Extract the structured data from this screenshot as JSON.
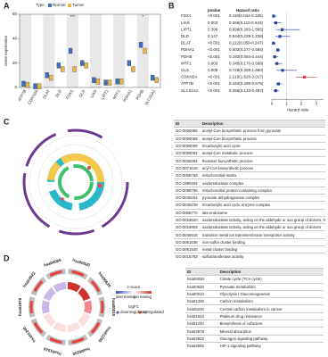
{
  "panel_labels": [
    "A",
    "B",
    "C",
    "D"
  ],
  "chart_data": [
    {
      "type": "box",
      "ylabel": "Gene expression",
      "legend_title": "Type",
      "categories": [
        "ATP7B",
        "CDKN2A",
        "DLAT",
        "DLD",
        "FDX1",
        "GLS",
        "LIAS",
        "LIPT1",
        "MTF1",
        "PDHA1",
        "PDHB",
        "SLC31A1"
      ],
      "series": [
        {
          "name": "Normal",
          "color": "#3d6fc4",
          "values": [
            3,
            1,
            10,
            18,
            30,
            20,
            6,
            4,
            5,
            20,
            35,
            8
          ]
        },
        {
          "name": "Tumor",
          "color": "#e8b64a",
          "values": [
            2,
            1,
            8,
            15,
            15,
            18,
            5,
            4,
            5,
            15,
            30,
            6
          ]
        }
      ],
      "significance": [
        null,
        null,
        null,
        null,
        "***",
        null,
        null,
        null,
        null,
        null,
        "*",
        null
      ],
      "ylim": [
        0,
        60
      ],
      "yticks": [
        0,
        20,
        40,
        60
      ]
    },
    {
      "type": "forest",
      "headers": [
        "pvalue",
        "Hazard ratio"
      ],
      "xlabel": "Hazard ratio",
      "categories": [
        "FDX1",
        "LIAS",
        "LIPT1",
        "DLD",
        "DLAT",
        "PDHA1",
        "PDHB",
        "MTF1",
        "GLS",
        "CDKN2A",
        "ATP7B",
        "SLC31A1"
      ],
      "pvalues": [
        "<0.001",
        "0.003",
        "0.390",
        "0.147",
        "<0.001",
        "<0.001",
        "<0.001",
        "0.003",
        "0.008",
        "<0.001",
        "<0.001",
        "<0.001"
      ],
      "values": [
        0.119,
        0.266,
        0.698,
        0.544,
        0.112,
        0.402,
        0.193,
        0.345,
        0.726,
        2.21,
        0.443,
        0.255
      ],
      "lower": [
        0.044,
        0.11,
        0.283,
        0.239,
        0.05,
        0.277,
        0.084,
        0.17,
        0.308,
        1.62,
        0.289,
        0.133
      ],
      "upper": [
        0.325,
        0.643,
        1.895,
        1.238,
        0.247,
        0.584,
        0.444,
        0.699,
        1.69,
        3.017,
        0.679,
        0.487
      ],
      "value_labels": [
        "0.119(0.044-0.325)",
        "0.266(0.110-0.643)",
        "0.698(0.283-1.895)",
        "0.544(0.239-1.238)",
        "0.112(0.050-0.247)",
        "0.402(0.277-0.584)",
        "0.193(0.084-0.444)",
        "0.345(0.170-0.699)",
        "0.726(0.308-1.690)",
        "2.210(1.620-3.017)",
        "0.443(0.289-0.679)",
        "0.255(0.133-0.487)"
      ],
      "color": "#2a3f9e",
      "highlight_color": "#d93a3a",
      "refline": 1,
      "xlim": [
        0,
        3.5
      ],
      "xticks": [
        0,
        1,
        2,
        3
      ]
    }
  ],
  "go_table": {
    "header": [
      "ID",
      "Description"
    ],
    "rows": [
      [
        "GO:0006086",
        "acetyl-CoA biosynthetic process from pyruvate"
      ],
      [
        "GO:0006085",
        "acetyl-CoA biosynthetic process"
      ],
      [
        "GO:0006099",
        "tricarboxylic acid cycle"
      ],
      [
        "GO:0006084",
        "acetyl-CoA metabolic process"
      ],
      [
        "GO:0035384",
        "thioester biosynthetic process"
      ],
      [
        "GO:0071616",
        "acyl-CoA biosynthetic process"
      ],
      [
        "GO:0005759",
        "mitochondrial matrix"
      ],
      [
        "GO:1990204",
        "oxidoreductase complex"
      ],
      [
        "GO:0098798",
        "mitochondrial protein-containing complex"
      ],
      [
        "GO:0045254",
        "pyruvate dehydrogenase complex"
      ],
      [
        "GO:0045239",
        "tricarboxylic acid cycle enzyme complex"
      ],
      [
        "GO:0005770",
        "late endosome"
      ],
      [
        "GO:0016620",
        "oxidoreductase activity, acting on the aldehyde or oxo group of donors, NAD or NADP as acceptor"
      ],
      [
        "GO:0016903",
        "oxidoreductase activity, acting on the aldehyde or oxo group of donors"
      ],
      [
        "GO:0046915",
        "transition metal ion transmembrane transporter activity"
      ],
      [
        "GO:0051536",
        "iron-sulfur cluster binding"
      ],
      [
        "GO:0051540",
        "metal cluster binding"
      ],
      [
        "GO:0016783",
        "sulfurtransferase activity"
      ]
    ]
  },
  "kegg_circle": {
    "labels": [
      "hsa00020",
      "hsa00620",
      "hsa00010",
      "hsa01200",
      "hsa05230",
      "hsa01524",
      "hsa01240",
      "hsa04978",
      "hsa04922",
      "hsa04066"
    ],
    "zscore_title": "z-score",
    "low": "decreasing",
    "high": "increasing",
    "logfc_title": "logFC",
    "down": "downregulated",
    "up": "upregulated"
  },
  "kegg_table": {
    "header": [
      "ID",
      "Description"
    ],
    "rows": [
      [
        "hsa00020",
        "Citrate cycle (TCA cycle)"
      ],
      [
        "hsa00620",
        "Pyruvate metabolism"
      ],
      [
        "hsa00010",
        "Glycolysis / Gluconeogenesis"
      ],
      [
        "hsa01200",
        "Carbon metabolism"
      ],
      [
        "hsa05230",
        "Central carbon metabolism in cancer"
      ],
      [
        "hsa01524",
        "Platinum drug resistance"
      ],
      [
        "hsa01240",
        "Biosynthesis of cofactors"
      ],
      [
        "hsa04978",
        "Mineral absorption"
      ],
      [
        "hsa04922",
        "Glucagon signaling pathway"
      ],
      [
        "hsa04066",
        "HIF-1 signaling pathway"
      ]
    ]
  }
}
